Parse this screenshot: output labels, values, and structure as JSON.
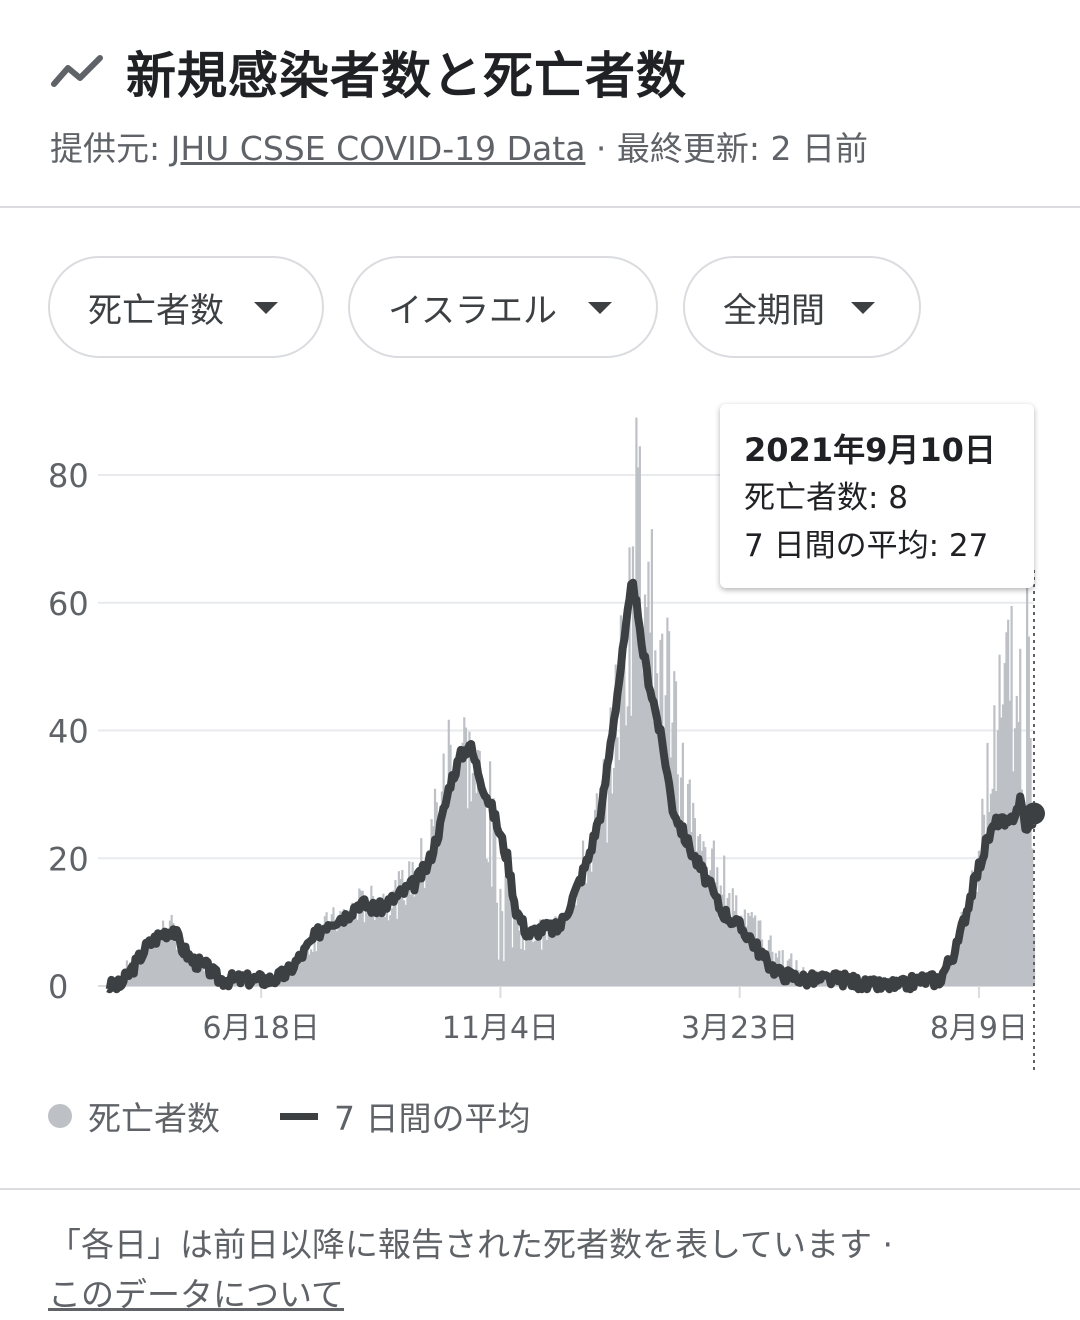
{
  "header": {
    "title": "新規感染者数と死亡者数",
    "source_prefix": "提供元: ",
    "source_link": "JHU CSSE COVID-19 Data",
    "separator": " · ",
    "updated": "最終更新: 2 日前"
  },
  "filters": [
    {
      "label": "死亡者数"
    },
    {
      "label": "イスラエル"
    },
    {
      "label": "全期間"
    }
  ],
  "tooltip": {
    "date": "2021年9月10日",
    "deaths_line": "死亡者数: 8",
    "avg_line": "7 日間の平均: 27"
  },
  "legend": {
    "bars": "死亡者数",
    "line": "7 日間の平均"
  },
  "footnote": {
    "text": "「各日」は前日以降に報告された死者数を表しています ·",
    "link": "このデータについて"
  },
  "colors": {
    "bar": "#bdc1c6",
    "line": "#3c4043",
    "grid": "#e8eaed"
  },
  "chart_data": {
    "type": "bar",
    "title": "",
    "y_ticks": [
      0,
      20,
      40,
      60,
      80
    ],
    "ylim": [
      0,
      90
    ],
    "x_tick_labels": [
      {
        "label": "6月18日",
        "x": "2020-06-18"
      },
      {
        "label": "11月4日",
        "x": "2020-11-04"
      },
      {
        "label": "3月23日",
        "x": "2021-03-23"
      },
      {
        "label": "8月9日",
        "x": "2021-08-09"
      }
    ],
    "x_range": [
      "2020-03-21",
      "2021-09-10"
    ],
    "series": [
      {
        "name": "死亡者数",
        "kind": "bar",
        "points": [
          [
            "2020-03-21",
            0
          ],
          [
            "2020-04-05",
            4
          ],
          [
            "2020-04-15",
            7
          ],
          [
            "2020-04-25",
            10
          ],
          [
            "2020-05-05",
            5
          ],
          [
            "2020-05-15",
            3
          ],
          [
            "2020-05-25",
            1
          ],
          [
            "2020-06-10",
            1
          ],
          [
            "2020-06-25",
            1
          ],
          [
            "2020-07-05",
            2
          ],
          [
            "2020-07-15",
            6
          ],
          [
            "2020-07-25",
            9
          ],
          [
            "2020-08-05",
            11
          ],
          [
            "2020-08-20",
            13
          ],
          [
            "2020-09-05",
            14
          ],
          [
            "2020-09-20",
            20
          ],
          [
            "2020-09-30",
            30
          ],
          [
            "2020-10-07",
            40
          ],
          [
            "2020-10-12",
            38
          ],
          [
            "2020-10-20",
            34
          ],
          [
            "2020-10-28",
            22
          ],
          [
            "2020-11-05",
            10
          ],
          [
            "2020-11-15",
            8
          ],
          [
            "2020-11-25",
            8
          ],
          [
            "2020-12-05",
            9
          ],
          [
            "2020-12-15",
            15
          ],
          [
            "2020-12-25",
            20
          ],
          [
            "2021-01-05",
            32
          ],
          [
            "2021-01-12",
            45
          ],
          [
            "2021-01-19",
            58
          ],
          [
            "2021-01-22",
            85
          ],
          [
            "2021-01-26",
            80
          ],
          [
            "2021-02-02",
            55
          ],
          [
            "2021-02-10",
            48
          ],
          [
            "2021-02-20",
            30
          ],
          [
            "2021-03-01",
            22
          ],
          [
            "2021-03-10",
            18
          ],
          [
            "2021-03-20",
            14
          ],
          [
            "2021-04-01",
            10
          ],
          [
            "2021-04-15",
            5
          ],
          [
            "2021-05-01",
            2
          ],
          [
            "2021-05-15",
            2
          ],
          [
            "2021-06-01",
            1
          ],
          [
            "2021-06-20",
            0
          ],
          [
            "2021-07-05",
            1
          ],
          [
            "2021-07-20",
            2
          ],
          [
            "2021-07-28",
            8
          ],
          [
            "2021-08-05",
            16
          ],
          [
            "2021-08-12",
            28
          ],
          [
            "2021-08-20",
            40
          ],
          [
            "2021-08-26",
            50
          ],
          [
            "2021-09-02",
            45
          ],
          [
            "2021-09-07",
            52
          ],
          [
            "2021-09-10",
            8
          ]
        ]
      },
      {
        "name": "7 日間の平均",
        "kind": "line",
        "points": [
          [
            "2020-03-21",
            0
          ],
          [
            "2020-03-28",
            0
          ],
          [
            "2020-04-05",
            3
          ],
          [
            "2020-04-12",
            6
          ],
          [
            "2020-04-20",
            8
          ],
          [
            "2020-04-28",
            9
          ],
          [
            "2020-05-03",
            6
          ],
          [
            "2020-05-09",
            4
          ],
          [
            "2020-05-17",
            3
          ],
          [
            "2020-05-25",
            1
          ],
          [
            "2020-06-05",
            1
          ],
          [
            "2020-06-25",
            1
          ],
          [
            "2020-07-03",
            2
          ],
          [
            "2020-07-12",
            5
          ],
          [
            "2020-07-20",
            8
          ],
          [
            "2020-07-27",
            10
          ],
          [
            "2020-08-06",
            11
          ],
          [
            "2020-08-14",
            13
          ],
          [
            "2020-08-25",
            12
          ],
          [
            "2020-09-05",
            14
          ],
          [
            "2020-09-15",
            16
          ],
          [
            "2020-09-23",
            19
          ],
          [
            "2020-09-30",
            25
          ],
          [
            "2020-10-06",
            32
          ],
          [
            "2020-10-12",
            36
          ],
          [
            "2020-10-17",
            38
          ],
          [
            "2020-10-24",
            32
          ],
          [
            "2020-10-31",
            27
          ],
          [
            "2020-11-08",
            20
          ],
          [
            "2020-11-13",
            12
          ],
          [
            "2020-11-20",
            8
          ],
          [
            "2020-11-28",
            9
          ],
          [
            "2020-12-08",
            9
          ],
          [
            "2020-12-18",
            15
          ],
          [
            "2020-12-25",
            20
          ],
          [
            "2021-01-02",
            28
          ],
          [
            "2021-01-08",
            40
          ],
          [
            "2021-01-13",
            50
          ],
          [
            "2021-01-18",
            60
          ],
          [
            "2021-01-20",
            64
          ],
          [
            "2021-01-24",
            55
          ],
          [
            "2021-01-29",
            48
          ],
          [
            "2021-02-03",
            42
          ],
          [
            "2021-02-08",
            35
          ],
          [
            "2021-02-12",
            28
          ],
          [
            "2021-02-18",
            24
          ],
          [
            "2021-02-25",
            20
          ],
          [
            "2021-03-05",
            16
          ],
          [
            "2021-03-12",
            12
          ],
          [
            "2021-03-20",
            10
          ],
          [
            "2021-03-28",
            8
          ],
          [
            "2021-04-07",
            4
          ],
          [
            "2021-04-15",
            2
          ],
          [
            "2021-05-01",
            1
          ],
          [
            "2021-05-15",
            1
          ],
          [
            "2021-05-25",
            1
          ],
          [
            "2021-06-05",
            0
          ],
          [
            "2021-06-25",
            0
          ],
          [
            "2021-07-05",
            1
          ],
          [
            "2021-07-17",
            1
          ],
          [
            "2021-07-27",
            6
          ],
          [
            "2021-08-05",
            15
          ],
          [
            "2021-08-14",
            23
          ],
          [
            "2021-08-20",
            26
          ],
          [
            "2021-08-26",
            25
          ],
          [
            "2021-09-02",
            29
          ],
          [
            "2021-09-06",
            24
          ],
          [
            "2021-09-10",
            27
          ]
        ]
      }
    ]
  }
}
